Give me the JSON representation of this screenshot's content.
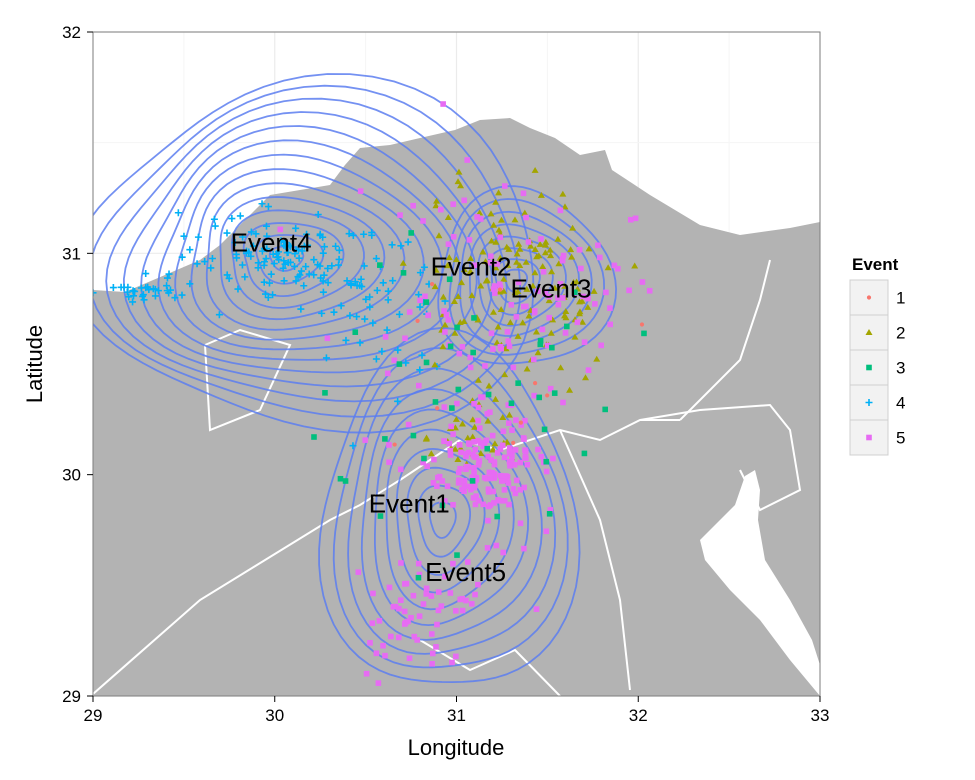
{
  "chart_data": {
    "type": "scatter",
    "xlabel": "Longitude",
    "ylabel": "Latitude",
    "xlim": [
      29,
      33
    ],
    "ylim": [
      29,
      32
    ],
    "x_ticks": [
      29,
      30,
      31,
      32,
      33
    ],
    "y_ticks": [
      29,
      30,
      31,
      32
    ],
    "x_tick_labels": [
      "29",
      "30",
      "31",
      "32",
      "33"
    ],
    "y_tick_labels": [
      "29",
      "30",
      "31",
      "32"
    ],
    "grid": true,
    "background": "map",
    "legend": {
      "title": "Event",
      "placement": "right",
      "entries": [
        {
          "label": "1",
          "color": "#f8766d",
          "shape": "circle"
        },
        {
          "label": "2",
          "color": "#a3a500",
          "shape": "triangle"
        },
        {
          "label": "3",
          "color": "#00bf7d",
          "shape": "square"
        },
        {
          "label": "4",
          "color": "#00b0f6",
          "shape": "plus"
        },
        {
          "label": "5",
          "color": "#e76bf3",
          "shape": "square"
        }
      ]
    },
    "annotations": [
      {
        "text": "Event4",
        "x": 29.98,
        "y": 31.05
      },
      {
        "text": "Event2",
        "x": 31.08,
        "y": 30.94
      },
      {
        "text": "Event3",
        "x": 31.52,
        "y": 30.84
      },
      {
        "text": "Event1",
        "x": 30.74,
        "y": 29.87
      },
      {
        "text": "Event5",
        "x": 31.05,
        "y": 29.56
      }
    ],
    "density_centers": [
      {
        "name": "Event4",
        "x": 30.05,
        "y": 30.98
      },
      {
        "name": "Event2",
        "x": 31.32,
        "y": 30.88
      },
      {
        "name": "Event1",
        "x": 30.92,
        "y": 29.8
      }
    ],
    "series": [
      {
        "name": "4",
        "clusters": [
          {
            "x": 30.03,
            "y": 31.0,
            "sx": 0.28,
            "sy": 0.1,
            "n": 120
          },
          {
            "x": 30.55,
            "y": 30.75,
            "sx": 0.2,
            "sy": 0.2,
            "n": 50
          },
          {
            "x": 29.25,
            "y": 30.82,
            "sx": 0.15,
            "sy": 0.02,
            "n": 30
          }
        ]
      },
      {
        "name": "2",
        "clusters": [
          {
            "x": 31.3,
            "y": 30.85,
            "sx": 0.25,
            "sy": 0.22,
            "n": 140
          },
          {
            "x": 31.1,
            "y": 30.15,
            "sx": 0.15,
            "sy": 0.1,
            "n": 30
          }
        ]
      },
      {
        "name": "5",
        "clusters": [
          {
            "x": 31.15,
            "y": 30.05,
            "sx": 0.15,
            "sy": 0.12,
            "n": 150
          },
          {
            "x": 31.4,
            "y": 30.9,
            "sx": 0.3,
            "sy": 0.25,
            "n": 80
          },
          {
            "x": 30.8,
            "y": 29.4,
            "sx": 0.2,
            "sy": 0.15,
            "n": 60
          },
          {
            "x": 30.9,
            "y": 30.5,
            "sx": 0.5,
            "sy": 0.4,
            "n": 40
          }
        ]
      },
      {
        "name": "3",
        "clusters": [
          {
            "x": 31.0,
            "y": 30.3,
            "sx": 0.35,
            "sy": 0.4,
            "n": 45
          }
        ]
      },
      {
        "name": "1",
        "clusters": [
          {
            "x": 31.3,
            "y": 30.5,
            "sx": 0.3,
            "sy": 0.3,
            "n": 10
          }
        ]
      }
    ],
    "colors": {
      "land": "#b3b3b3",
      "panel": "#ffffff",
      "grid": "#ebebeb",
      "border": "#ffffff",
      "contour": "#5c7ef0"
    }
  }
}
